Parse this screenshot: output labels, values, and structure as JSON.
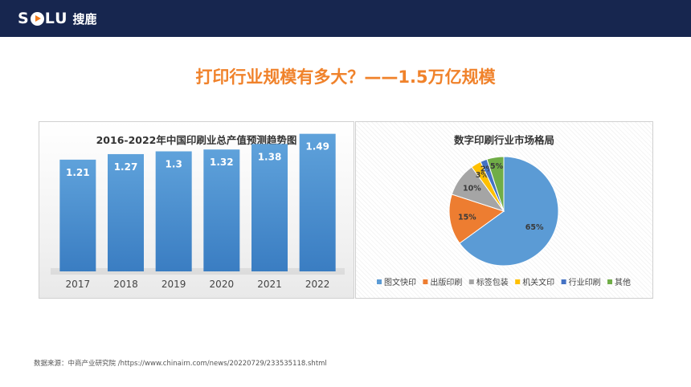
{
  "header": {
    "logo_text": "SOLU",
    "logo_cn": "搜鹿"
  },
  "page_title": "打印行业规模有多大？——1.5万亿规模",
  "chart_data": [
    {
      "type": "bar",
      "title": "2016-2022年中国印刷业总产值预测趋势图",
      "categories": [
        "2017",
        "2018",
        "2019",
        "2020",
        "2021",
        "2022"
      ],
      "values": [
        1.21,
        1.27,
        1.3,
        1.32,
        1.38,
        1.49
      ],
      "value_labels": [
        "1.21",
        "1.27",
        "1.3",
        "1.32",
        "1.38",
        "1.49"
      ],
      "ylim": [
        0,
        1.6
      ],
      "color": "#5b9bd5",
      "xlabel": "",
      "ylabel": ""
    },
    {
      "type": "pie",
      "title": "数字印刷行业市场格局",
      "labels": [
        "图文快印",
        "出版印刷",
        "标签包装",
        "机关文印",
        "行业印刷",
        "其他"
      ],
      "values": [
        65,
        15,
        10,
        3,
        2,
        5
      ],
      "value_labels": [
        "65%",
        "15%",
        "10%",
        "3%",
        "2%",
        "5%"
      ],
      "colors": [
        "#5b9bd5",
        "#ed7d31",
        "#a5a5a5",
        "#ffc000",
        "#4472c4",
        "#70ad47"
      ],
      "legend_position": "bottom"
    }
  ],
  "source": "数据来源：中商产业研究院 /https://www.chinairn.com/news/20220729/233535118.shtml"
}
